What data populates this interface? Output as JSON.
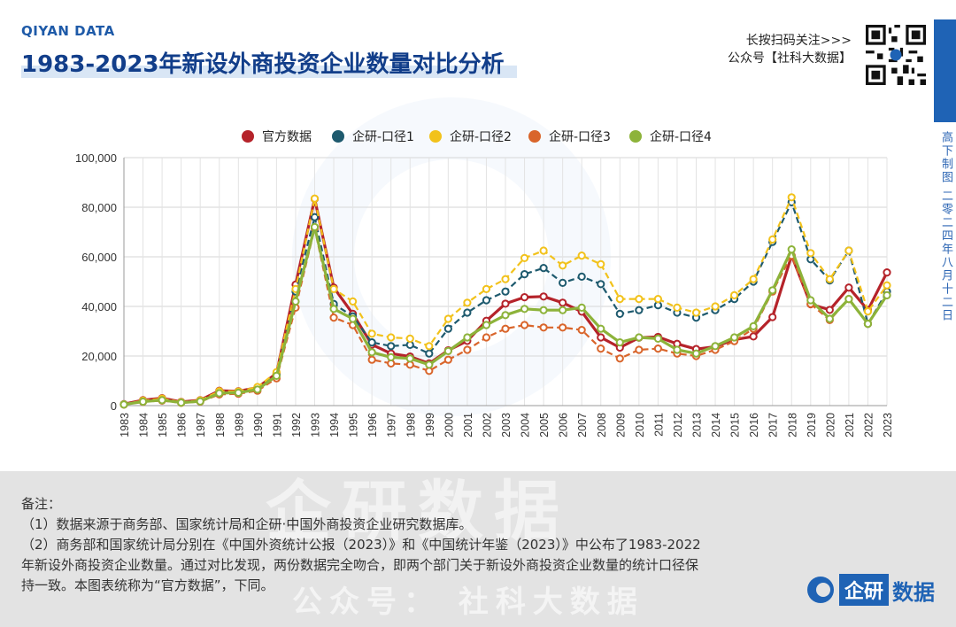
{
  "brand": "QIYAN DATA",
  "title": "1983-2023年新设外商投资企业数量对比分析",
  "qr_text": {
    "line1": "长按扫码关注>>>",
    "line2": "公众号【社科大数据】"
  },
  "side_text": "高下制图 二零二四年八月十二日",
  "notes": {
    "heading": "备注：",
    "lines": [
      "（1）数据来源于商务部、国家统计局和企研·中国外商投资企业研究数据库。",
      "（2）商务部和国家统计局分别在《中国外资统计公报（2023）》和《中国统计年鉴（2023）》中公布了1983-2022",
      "年新设外商投资企业数量。通过对比发现，两份数据完全吻合，即两个部门关于新设外商投资企业数量的统计口径保",
      "持一致。本图表统称为“官方数据”，下同。"
    ]
  },
  "watermark": {
    "big": "企研数据",
    "small": "公众号： 社科大数据"
  },
  "logo": {
    "box": "企研",
    "rest": "数据"
  },
  "chart_data": {
    "type": "line",
    "title": "",
    "xlabel": "",
    "ylabel": "",
    "ylim": [
      0,
      100000
    ],
    "yticks": [
      0,
      20000,
      40000,
      60000,
      80000,
      100000
    ],
    "ytick_labels": [
      "0",
      "20,000",
      "40,000",
      "60,000",
      "80,000",
      "100,000"
    ],
    "grid": "on",
    "legend_placement": "top-center",
    "x": [
      "1983",
      "1984",
      "1985",
      "1986",
      "1987",
      "1988",
      "1989",
      "1990",
      "1991",
      "1992",
      "1993",
      "1994",
      "1995",
      "1996",
      "1997",
      "1998",
      "1999",
      "2000",
      "2001",
      "2002",
      "2003",
      "2004",
      "2005",
      "2006",
      "2007",
      "2008",
      "2009",
      "2010",
      "2011",
      "2012",
      "2013",
      "2014",
      "2015",
      "2016",
      "2017",
      "2018",
      "2019",
      "2020",
      "2021",
      "2022",
      "2023"
    ],
    "series": [
      {
        "name": "官方数据",
        "color": "#b5232a",
        "dashed": false,
        "values": [
          600,
          2200,
          3000,
          1500,
          2200,
          6000,
          5800,
          7300,
          13000,
          48800,
          83400,
          47600,
          37000,
          24600,
          21000,
          19800,
          17000,
          22300,
          26100,
          34200,
          41100,
          43700,
          44000,
          41500,
          37900,
          27500,
          23400,
          27400,
          27700,
          24900,
          22800,
          23800,
          26600,
          27900,
          35700,
          60500,
          40900,
          38600,
          47600,
          38500,
          53700
        ]
      },
      {
        "name": "企研-口径1",
        "color": "#1e5a6e",
        "dashed": true,
        "values": [
          500,
          1800,
          2500,
          1300,
          2000,
          5500,
          5500,
          7000,
          12500,
          46000,
          76000,
          41000,
          36000,
          25500,
          24000,
          24500,
          21000,
          31000,
          37500,
          42500,
          46000,
          53000,
          55500,
          49500,
          52000,
          49000,
          37000,
          38500,
          40500,
          37500,
          35500,
          38500,
          43000,
          50000,
          66000,
          82000,
          59000,
          50500,
          62500,
          33000,
          46000
        ]
      },
      {
        "name": "企研-口径2",
        "color": "#f2c21b",
        "dashed": true,
        "values": [
          500,
          2000,
          2800,
          1400,
          2100,
          5800,
          5700,
          7500,
          13500,
          47000,
          83500,
          47000,
          42000,
          29000,
          27500,
          27000,
          24000,
          35000,
          41500,
          47000,
          51000,
          59500,
          62500,
          56500,
          60500,
          57000,
          43000,
          43000,
          43000,
          39500,
          37500,
          40000,
          44500,
          51000,
          67000,
          84000,
          61500,
          51000,
          62500,
          38000,
          48500
        ]
      },
      {
        "name": "企研-口径3",
        "color": "#d9652b",
        "dashed": true,
        "values": [
          400,
          1500,
          2000,
          1100,
          1600,
          4500,
          4800,
          6000,
          11000,
          39500,
          71500,
          35500,
          32500,
          18500,
          17000,
          16500,
          14000,
          18500,
          22500,
          27500,
          31000,
          32500,
          31500,
          31500,
          30500,
          23000,
          19000,
          22500,
          23000,
          21000,
          20000,
          22500,
          26000,
          31000,
          46000,
          60500,
          41000,
          34500,
          43000,
          33000,
          44500
        ]
      },
      {
        "name": "企研-口径4",
        "color": "#8db33a",
        "dashed": false,
        "values": [
          450,
          1600,
          2200,
          1200,
          1700,
          5000,
          5200,
          6500,
          12000,
          42000,
          72000,
          39000,
          35000,
          21500,
          19500,
          19000,
          16500,
          22000,
          27500,
          32500,
          36500,
          39000,
          38500,
          38500,
          39500,
          31000,
          25500,
          27500,
          27000,
          22500,
          21000,
          24000,
          27500,
          32000,
          46500,
          63000,
          42500,
          35000,
          43000,
          33000,
          44500
        ]
      }
    ]
  }
}
